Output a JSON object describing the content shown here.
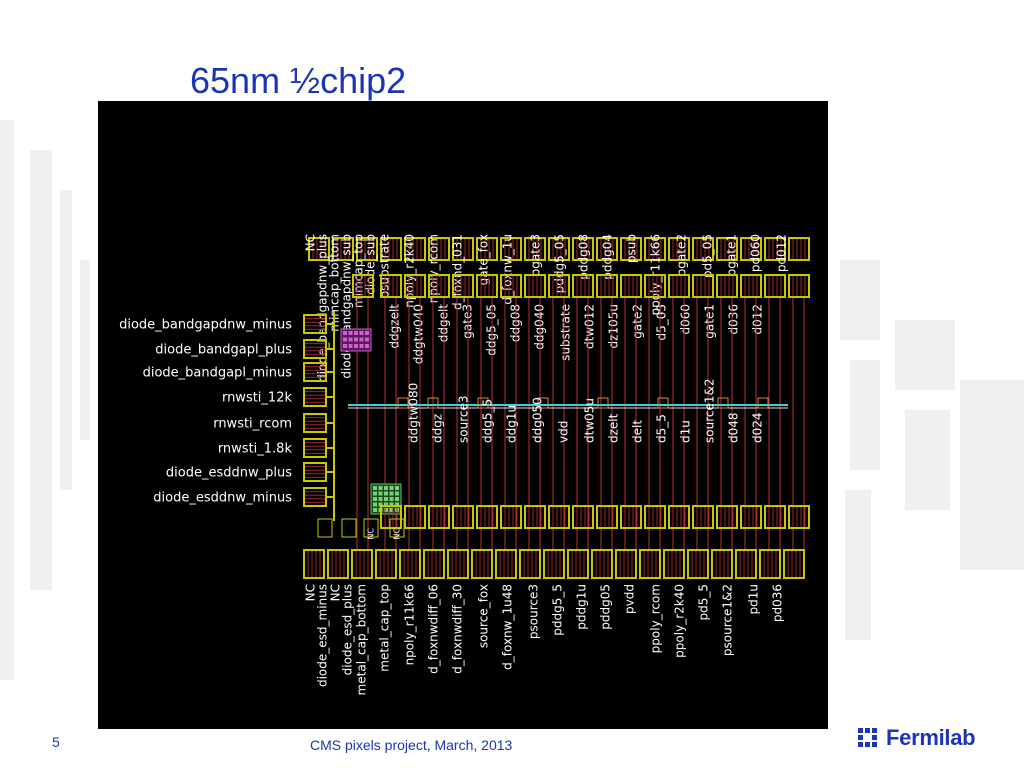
{
  "slide": {
    "title": "65nm ½chip2",
    "number": "5",
    "footer": "CMS pixels project, March, 2013",
    "logo_text": "Fermilab"
  },
  "colors": {
    "title": "#1c35b5",
    "layout_background": "#000000",
    "pad_outline": "#c8c800",
    "pad_hatch": "#a02828",
    "trace_red": "#b83232",
    "trace_cyan": "#3fd0d0",
    "label_text": "#ffffff"
  },
  "layout": {
    "top_row_outer": [
      "NC",
      "diode_bandgapdnw_plus",
      "mimcap_bottom",
      "diode_bandgapdnw_sub",
      "mimcap_top",
      "diode_sub",
      "psubstrate",
      "npoly_r2k40",
      "npoly_rcom",
      "d_foxnd_031",
      "gate_fox",
      "d_foxnw_1u",
      "pgate3",
      "pddg5_05",
      "pddg08",
      "pddg04",
      "psub",
      "ppoly_r11k66",
      "pgate2",
      "pd5_05",
      "pgate1",
      "pd060",
      "pd012"
    ],
    "top_row_inner": [
      "ddgzelt",
      "ddgtw040",
      "ddgelt",
      "gate3",
      "ddg5_05",
      "ddg08",
      "ddg040",
      "substrate",
      "dtw012",
      "dz105u",
      "gate2",
      "d5_05",
      "d060",
      "gate1",
      "d036",
      "d012"
    ],
    "left_side": [
      "diode_bandgapdnw_minus",
      "diode_bandgapl_plus",
      "diode_bandgapl_minus",
      "rnwsti_12k",
      "rnwsti_rcom",
      "rnwsti_1.8k",
      "diode_esddnw_plus",
      "diode_esddnw_minus"
    ],
    "bottom_row_inner": [
      "ddgtw080",
      "ddgz",
      "source3",
      "ddg5_5",
      "ddg1u",
      "ddg050",
      "vdd",
      "dtw05u",
      "dzelt",
      "delt",
      "d5_5",
      "d1u",
      "source1&2",
      "d048",
      "d024"
    ],
    "bottom_small": [
      "diode_esd_minus",
      "diode_esd_plus",
      "NC",
      "NC"
    ],
    "bottom_row_outer": [
      "NC",
      "diode_esd_minus",
      "NC",
      "diode_esd_plus",
      "metal_cap_bottom",
      "metal_cap_top",
      "npoly_r11k66",
      "d_foxnwdiff_06",
      "d_foxnwdiff_30",
      "source_fox",
      "d_foxnw_1u48",
      "psource3",
      "pddg5_5",
      "pddg1u",
      "pddg05",
      "pvdd",
      "ppoly_rcom",
      "ppoly_r2k40",
      "pd5_5",
      "psource1&2",
      "pd1u",
      "pd036"
    ]
  }
}
